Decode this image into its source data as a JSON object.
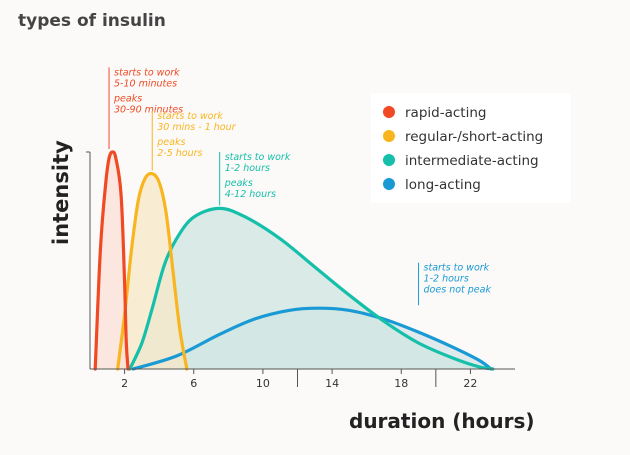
{
  "chart_data": {
    "type": "area",
    "title": "types of insulin",
    "xlabel": "duration (hours)",
    "ylabel": "intensity",
    "xlim": [
      0,
      24
    ],
    "ylim": [
      0,
      100
    ],
    "xticks": [
      2,
      6,
      10,
      14,
      18,
      22
    ],
    "legend_position": "top-right",
    "series": [
      {
        "key": "rapid",
        "name": "rapid-acting",
        "color": "#f04a25",
        "fill": "#fde0d8",
        "points": [
          [
            0.3,
            0
          ],
          [
            0.6,
            55
          ],
          [
            0.9,
            85
          ],
          [
            1.1,
            97
          ],
          [
            1.3,
            100
          ],
          [
            1.5,
            97
          ],
          [
            1.8,
            80
          ],
          [
            2.0,
            40
          ],
          [
            2.1,
            12
          ],
          [
            2.2,
            0
          ]
        ]
      },
      {
        "key": "regular",
        "name": "regular-/short-acting",
        "color": "#f9b51f",
        "fill": "#f7e8c8",
        "points": [
          [
            1.6,
            0
          ],
          [
            2.0,
            25
          ],
          [
            2.4,
            55
          ],
          [
            2.8,
            78
          ],
          [
            3.2,
            88
          ],
          [
            3.6,
            90
          ],
          [
            4.0,
            86
          ],
          [
            4.4,
            72
          ],
          [
            4.8,
            45
          ],
          [
            5.2,
            18
          ],
          [
            5.6,
            0
          ]
        ]
      },
      {
        "key": "intermediate",
        "name": "intermediate-acting",
        "color": "#16bfaa",
        "fill": "#cfe5e2",
        "points": [
          [
            2.3,
            0
          ],
          [
            3.0,
            12
          ],
          [
            3.6,
            28
          ],
          [
            4.3,
            48
          ],
          [
            5.0,
            60
          ],
          [
            6.0,
            70
          ],
          [
            7.5,
            74
          ],
          [
            9.0,
            70
          ],
          [
            11.0,
            60
          ],
          [
            13.0,
            47
          ],
          [
            15.0,
            34
          ],
          [
            17.0,
            22
          ],
          [
            19.0,
            12
          ],
          [
            21.0,
            5
          ],
          [
            22.5,
            1
          ],
          [
            23.3,
            0
          ]
        ]
      },
      {
        "key": "long",
        "name": "long-acting",
        "color": "#1a9ad5",
        "fill": "#d9e6e8",
        "points": [
          [
            2.5,
            0
          ],
          [
            5.0,
            6
          ],
          [
            7.5,
            16
          ],
          [
            9.5,
            23
          ],
          [
            11.5,
            27
          ],
          [
            13.2,
            28
          ],
          [
            15.0,
            27
          ],
          [
            17.0,
            23
          ],
          [
            19.0,
            17
          ],
          [
            21.0,
            10
          ],
          [
            22.5,
            4
          ],
          [
            23.2,
            0
          ]
        ]
      }
    ],
    "annotations": [
      {
        "series": "rapid",
        "x": 1.1,
        "y_top": 139,
        "color": "#f04a25",
        "lines": [
          "starts to work",
          "5-10 minutes",
          "",
          "peaks",
          "30-90 minutes"
        ]
      },
      {
        "series": "regular",
        "x": 3.6,
        "y_top": 119,
        "color": "#f9b51f",
        "lines": [
          "starts to work",
          "30 mins - 1 hour",
          "",
          "peaks",
          "2-5 hours"
        ]
      },
      {
        "series": "intermediate",
        "x": 7.5,
        "y_top": 100,
        "color": "#16bfaa",
        "lines": [
          "starts to work",
          "1-2 hours",
          "",
          "peaks",
          "4-12 hours"
        ]
      },
      {
        "series": "long",
        "x": 19.0,
        "y_top": 49,
        "color": "#1a9ad5",
        "lines": [
          "starts to work",
          "1-2 hours",
          "does not peak"
        ]
      }
    ]
  }
}
